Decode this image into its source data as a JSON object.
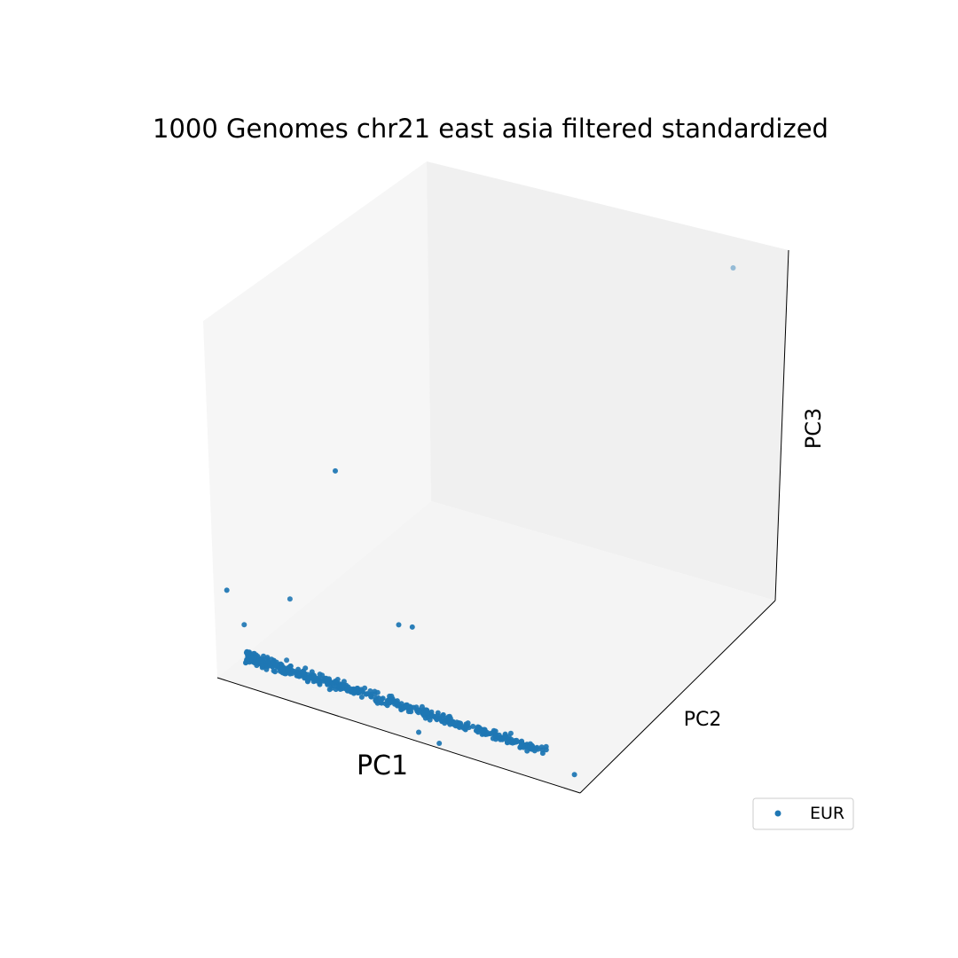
{
  "chart_data": {
    "type": "scatter",
    "projection": "3d",
    "title": "1000 Genomes chr21 east asia filtered standardized",
    "xlabel": "PC1",
    "ylabel": "PC2",
    "zlabel": "PC3",
    "ticks_visible": false,
    "grid": false,
    "legend": {
      "placement": "lower-right",
      "entries": [
        "EUR"
      ]
    },
    "xlim": [
      0,
      1
    ],
    "ylim": [
      0,
      1
    ],
    "zlim": [
      0,
      1
    ],
    "series": [
      {
        "name": "EUR",
        "color": "#1f77b4",
        "points": [
          [
            0.03,
            0.01,
            0.25
          ],
          [
            0.34,
            0.02,
            0.68
          ],
          [
            0.55,
            0.0,
            0.32
          ],
          [
            0.15,
            0.1,
            0.22
          ],
          [
            0.05,
            0.05,
            0.14
          ],
          [
            0.14,
            0.09,
            0.05
          ],
          [
            0.55,
            0.01,
            0.02
          ],
          [
            0.6,
            0.02,
            0.0
          ],
          [
            0.98,
            0.01,
            0.04
          ],
          [
            0.5,
            0.02,
            0.3
          ],
          [
            0.9,
            0.95,
            0.97
          ]
        ],
        "cluster": {
          "description": "dense elongated band near the PC2 minimum, spanning most of PC1",
          "count": 560,
          "pc1_range": [
            0.08,
            0.9
          ],
          "pc2_spread": 0.035,
          "pc3_center": 0.08,
          "pc3_spread": 0.025
        }
      }
    ]
  }
}
